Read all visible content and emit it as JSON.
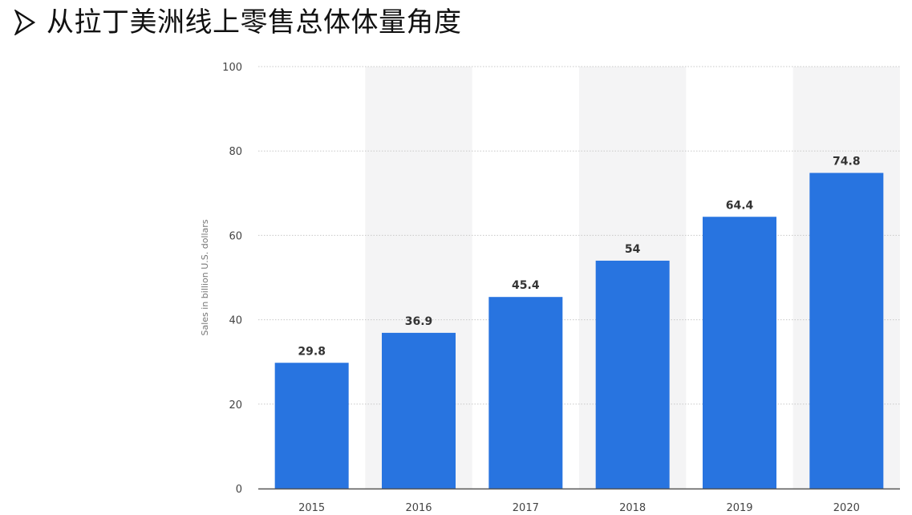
{
  "heading": {
    "text": "从拉丁美洲线上零售总体体量角度",
    "bullet_icon": "arrow-bullet-icon"
  },
  "chart_data": {
    "type": "bar",
    "categories": [
      "2015",
      "2016",
      "2017",
      "2018",
      "2019",
      "2020"
    ],
    "values": [
      29.8,
      36.9,
      45.4,
      54,
      64.4,
      74.8
    ],
    "data_labels": [
      "29.8",
      "36.9",
      "45.4",
      "54",
      "64.4",
      "74.8"
    ],
    "title": "",
    "xlabel": "",
    "ylabel": "Sales in billion U.S. dollars",
    "ylim": [
      0,
      100
    ],
    "yticks": [
      0,
      20,
      40,
      60,
      80,
      100
    ],
    "grid": true,
    "alternating_column_shading": true,
    "bar_color": "#2874e0",
    "shade_color": "#f4f4f5",
    "label_color": "#333333",
    "tick_color": "#444444"
  }
}
